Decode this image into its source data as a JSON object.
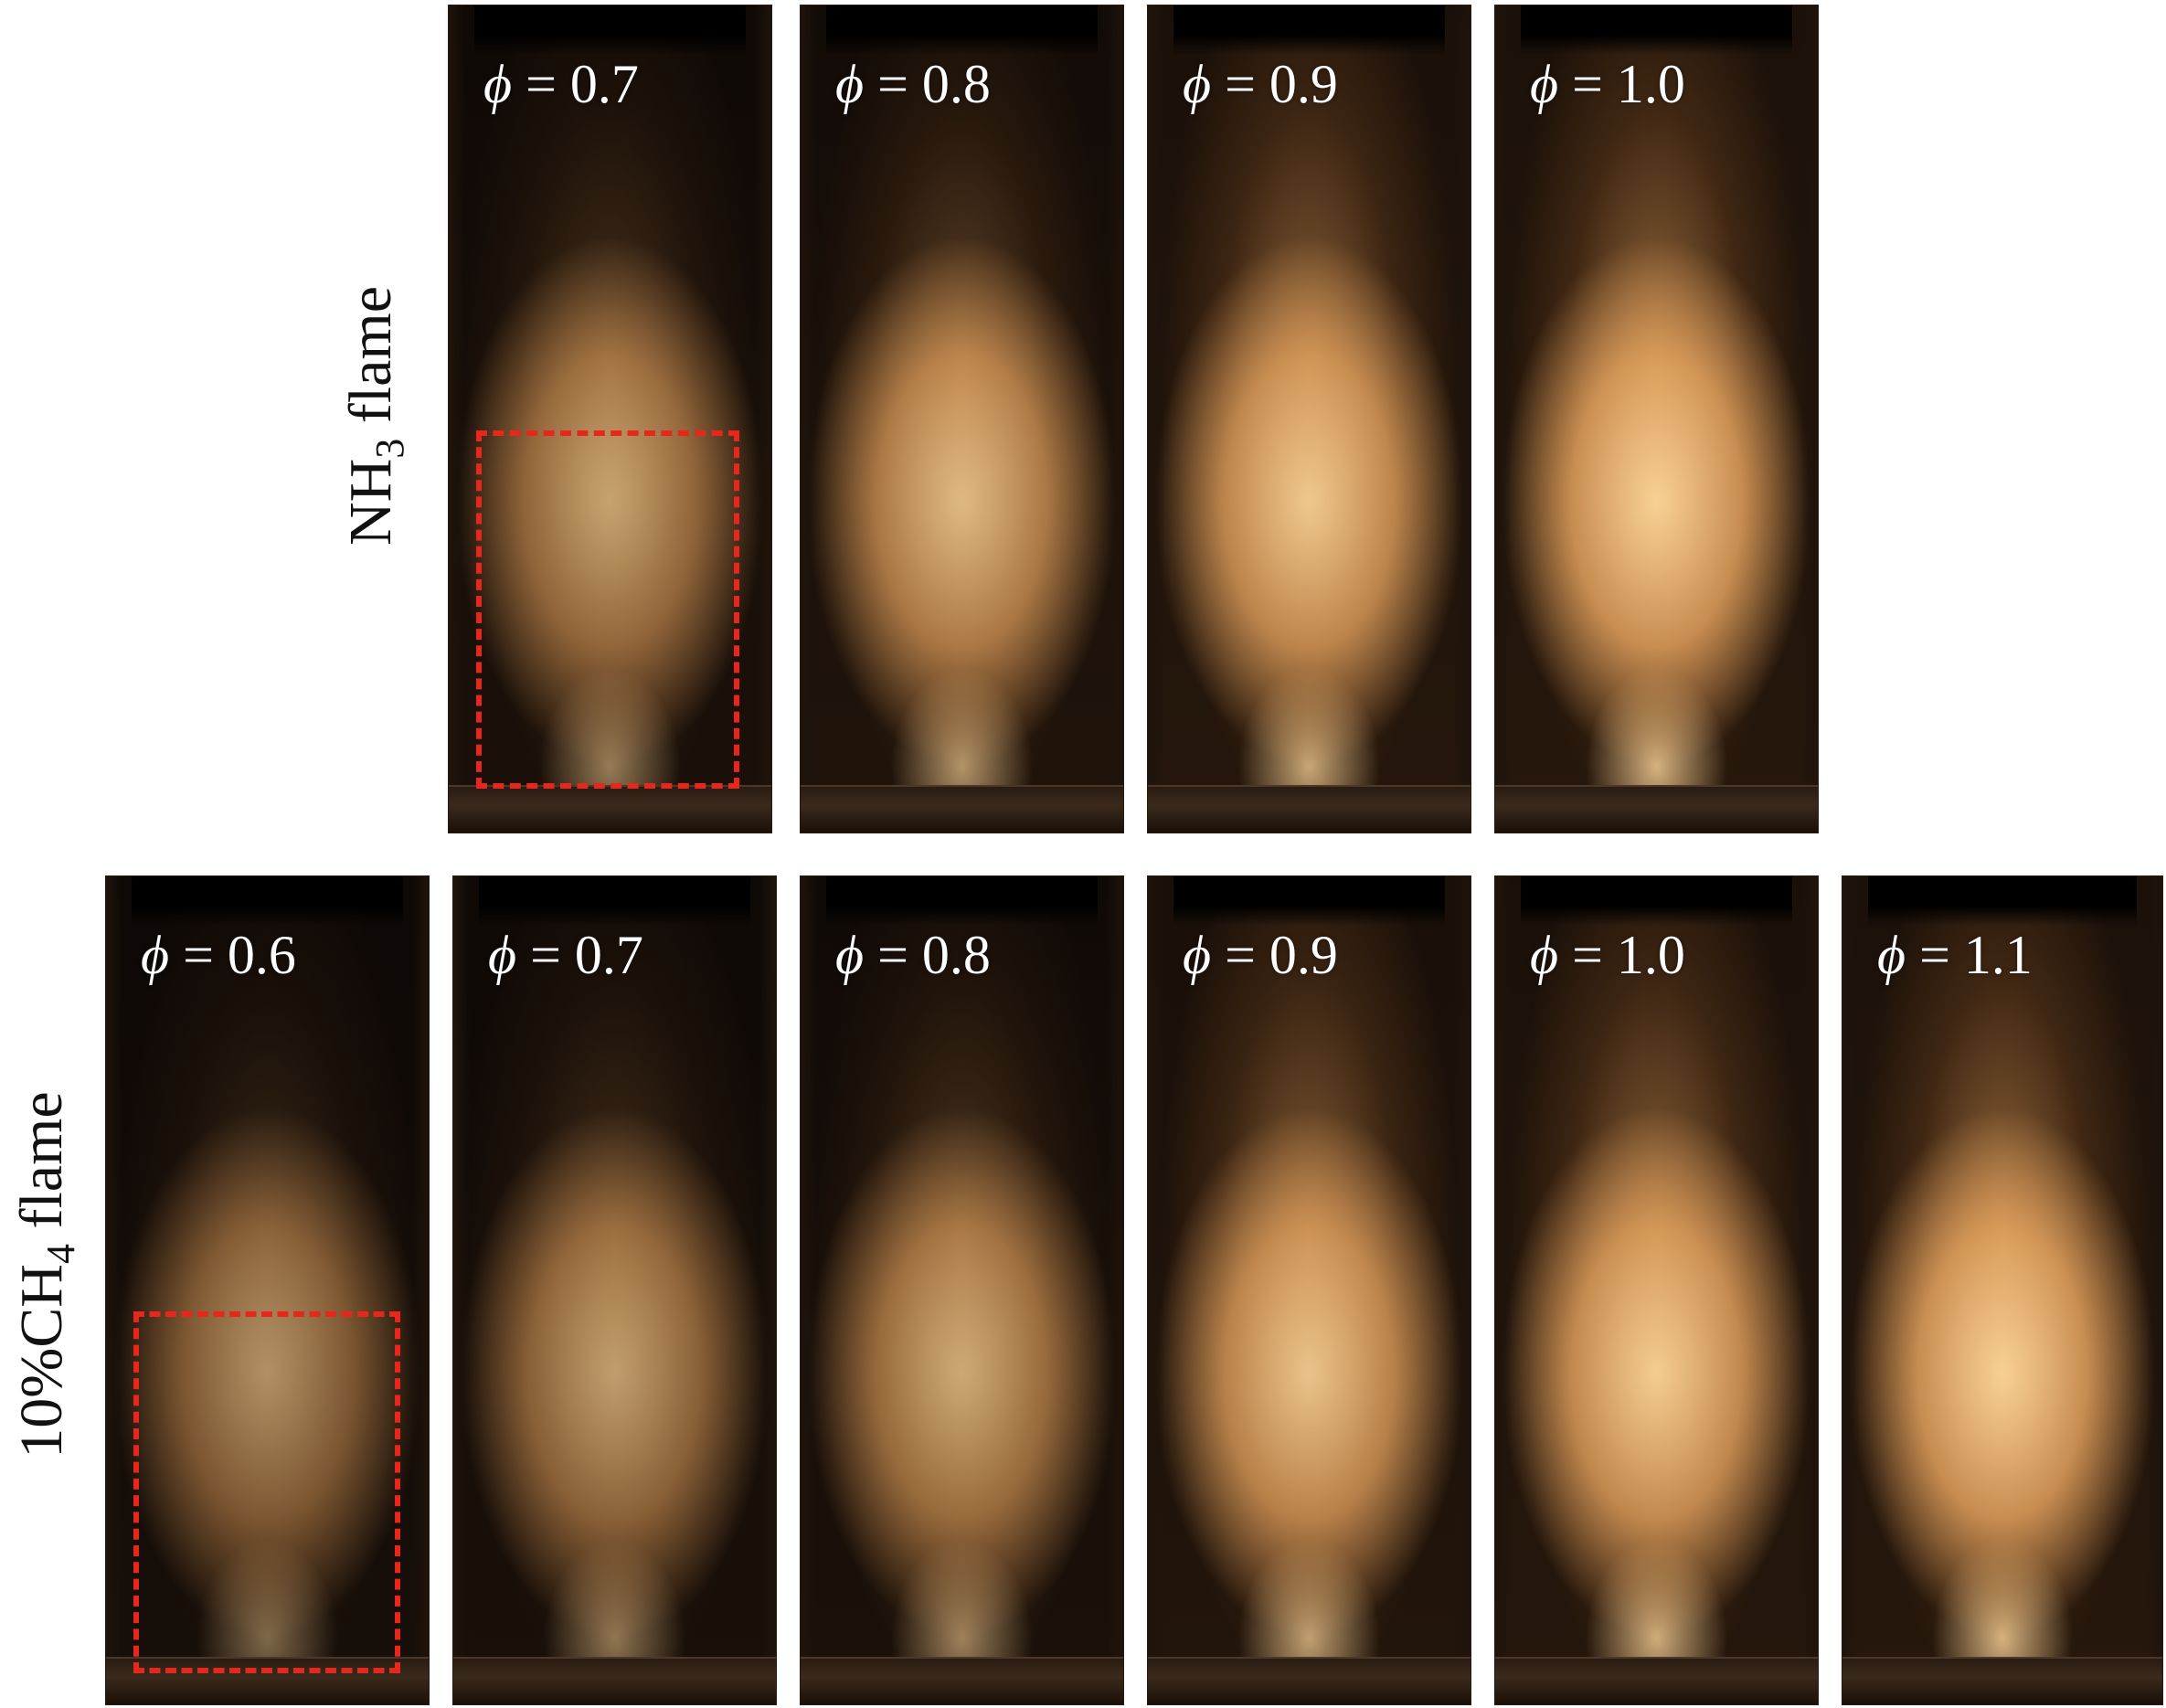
{
  "rows": [
    {
      "label_main": "NH",
      "label_sub": "3",
      "label_tail": " flame",
      "panels": [
        {
          "phi_symbol": "ϕ",
          "phi_value": "= 0.7",
          "intensity": 0.55
        },
        {
          "phi_symbol": "ϕ",
          "phi_value": "= 0.8",
          "intensity": 0.75
        },
        {
          "phi_symbol": "ϕ",
          "phi_value": "= 0.9",
          "intensity": 0.9
        },
        {
          "phi_symbol": "ϕ",
          "phi_value": "= 1.0",
          "intensity": 1.0
        }
      ]
    },
    {
      "label_main": "10%CH",
      "label_sub": "4",
      "label_tail": " flame",
      "panels": [
        {
          "phi_symbol": "ϕ",
          "phi_value": "= 0.6",
          "intensity": 0.4
        },
        {
          "phi_symbol": "ϕ",
          "phi_value": "= 0.7",
          "intensity": 0.5
        },
        {
          "phi_symbol": "ϕ",
          "phi_value": "= 0.8",
          "intensity": 0.6
        },
        {
          "phi_symbol": "ϕ",
          "phi_value": "= 0.9",
          "intensity": 0.85
        },
        {
          "phi_symbol": "ϕ",
          "phi_value": "= 1.0",
          "intensity": 0.95
        },
        {
          "phi_symbol": "ϕ",
          "phi_value": "= 1.1",
          "intensity": 1.0
        }
      ]
    }
  ],
  "colors": {
    "flame_core": "#ffd79a",
    "flame_mid": "#e9a660",
    "flame_edge": "#7a4a22",
    "background": "#0b0705",
    "roi": "#e8261c"
  }
}
